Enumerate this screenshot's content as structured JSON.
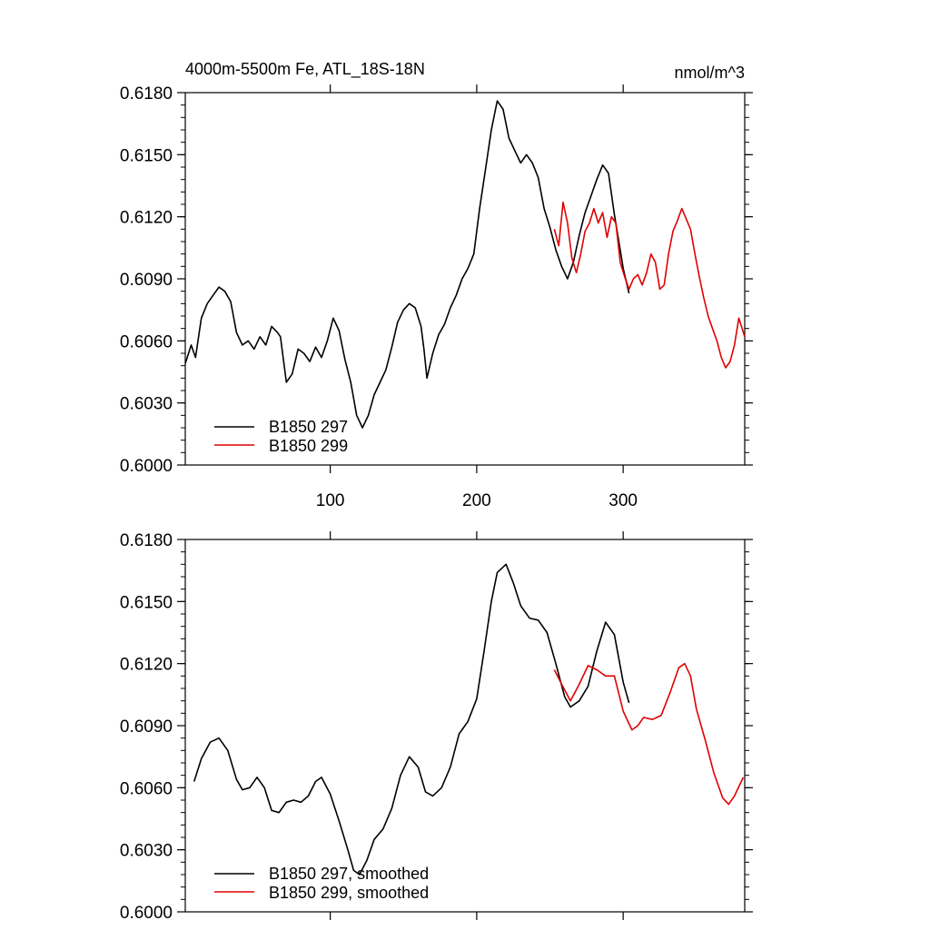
{
  "chart_data": [
    {
      "type": "line",
      "title": "4000m-5500m Fe, ATL_18S-18N",
      "units": "nmol/m^3",
      "xlim": [
        1,
        383
      ],
      "ylim": [
        0.6,
        0.618
      ],
      "xticks": [
        100,
        200,
        300
      ],
      "xtick_labels": [
        "100",
        "200",
        "300"
      ],
      "yticks": [
        0.6,
        0.603,
        0.606,
        0.609,
        0.612,
        0.615,
        0.618
      ],
      "ytick_labels": [
        "0.6000",
        "0.6030",
        "0.6060",
        "0.6090",
        "0.6120",
        "0.6150",
        "0.6180"
      ],
      "legend_position": "bottom-left",
      "series": [
        {
          "name": "B1850 297",
          "color": "#000000",
          "points": [
            [
              1,
              0.6049
            ],
            [
              5,
              0.6058
            ],
            [
              8,
              0.6052
            ],
            [
              12,
              0.6071
            ],
            [
              16,
              0.6078
            ],
            [
              20,
              0.6082
            ],
            [
              24,
              0.6086
            ],
            [
              28,
              0.6084
            ],
            [
              32,
              0.6079
            ],
            [
              36,
              0.6064
            ],
            [
              40,
              0.6058
            ],
            [
              44,
              0.606
            ],
            [
              48,
              0.6056
            ],
            [
              52,
              0.6062
            ],
            [
              56,
              0.6058
            ],
            [
              60,
              0.6067
            ],
            [
              64,
              0.6064
            ],
            [
              66,
              0.6062
            ],
            [
              70,
              0.604
            ],
            [
              74,
              0.6044
            ],
            [
              78,
              0.6056
            ],
            [
              82,
              0.6054
            ],
            [
              86,
              0.605
            ],
            [
              90,
              0.6057
            ],
            [
              94,
              0.6052
            ],
            [
              98,
              0.606
            ],
            [
              102,
              0.6071
            ],
            [
              106,
              0.6065
            ],
            [
              110,
              0.6051
            ],
            [
              114,
              0.604
            ],
            [
              118,
              0.6024
            ],
            [
              122,
              0.6018
            ],
            [
              126,
              0.6024
            ],
            [
              130,
              0.6034
            ],
            [
              134,
              0.604
            ],
            [
              138,
              0.6046
            ],
            [
              142,
              0.6057
            ],
            [
              146,
              0.6069
            ],
            [
              150,
              0.6075
            ],
            [
              154,
              0.6078
            ],
            [
              158,
              0.6076
            ],
            [
              162,
              0.6067
            ],
            [
              164,
              0.6056
            ],
            [
              166,
              0.6042
            ],
            [
              170,
              0.6054
            ],
            [
              174,
              0.6063
            ],
            [
              178,
              0.6068
            ],
            [
              182,
              0.6076
            ],
            [
              186,
              0.6082
            ],
            [
              190,
              0.609
            ],
            [
              194,
              0.6095
            ],
            [
              198,
              0.6102
            ],
            [
              202,
              0.6124
            ],
            [
              206,
              0.6143
            ],
            [
              210,
              0.6162
            ],
            [
              214,
              0.6176
            ],
            [
              218,
              0.6172
            ],
            [
              222,
              0.6158
            ],
            [
              226,
              0.6152
            ],
            [
              230,
              0.6146
            ],
            [
              234,
              0.615
            ],
            [
              238,
              0.6146
            ],
            [
              242,
              0.6139
            ],
            [
              246,
              0.6124
            ],
            [
              250,
              0.6115
            ],
            [
              254,
              0.6104
            ],
            [
              258,
              0.6096
            ],
            [
              262,
              0.609
            ],
            [
              266,
              0.6098
            ],
            [
              270,
              0.6111
            ],
            [
              274,
              0.6122
            ],
            [
              278,
              0.613
            ],
            [
              282,
              0.6138
            ],
            [
              286,
              0.6145
            ],
            [
              290,
              0.6141
            ],
            [
              294,
              0.6121
            ],
            [
              298,
              0.6104
            ],
            [
              300,
              0.6095
            ],
            [
              304,
              0.6083
            ]
          ]
        },
        {
          "name": "B1850 299",
          "color": "#e00000",
          "points": [
            [
              253,
              0.6114
            ],
            [
              256,
              0.6106
            ],
            [
              259,
              0.6127
            ],
            [
              262,
              0.6117
            ],
            [
              265,
              0.61
            ],
            [
              268,
              0.6093
            ],
            [
              271,
              0.6102
            ],
            [
              274,
              0.6113
            ],
            [
              277,
              0.6117
            ],
            [
              280,
              0.6124
            ],
            [
              283,
              0.6117
            ],
            [
              286,
              0.6122
            ],
            [
              289,
              0.611
            ],
            [
              292,
              0.612
            ],
            [
              295,
              0.6117
            ],
            [
              298,
              0.6098
            ],
            [
              301,
              0.6091
            ],
            [
              304,
              0.6085
            ],
            [
              307,
              0.609
            ],
            [
              310,
              0.6092
            ],
            [
              313,
              0.6087
            ],
            [
              316,
              0.6093
            ],
            [
              319,
              0.6102
            ],
            [
              322,
              0.6098
            ],
            [
              325,
              0.6085
            ],
            [
              328,
              0.6087
            ],
            [
              331,
              0.6102
            ],
            [
              334,
              0.6113
            ],
            [
              337,
              0.6118
            ],
            [
              340,
              0.6124
            ],
            [
              343,
              0.6119
            ],
            [
              346,
              0.6114
            ],
            [
              349,
              0.6102
            ],
            [
              352,
              0.6091
            ],
            [
              355,
              0.6081
            ],
            [
              358,
              0.6072
            ],
            [
              361,
              0.6066
            ],
            [
              364,
              0.606
            ],
            [
              367,
              0.6052
            ],
            [
              370,
              0.6047
            ],
            [
              373,
              0.605
            ],
            [
              376,
              0.6058
            ],
            [
              379,
              0.6071
            ],
            [
              383,
              0.6062
            ]
          ]
        }
      ]
    },
    {
      "type": "line",
      "xlim": [
        1,
        383
      ],
      "ylim": [
        0.6,
        0.618
      ],
      "yticks": [
        0.6,
        0.603,
        0.606,
        0.609,
        0.612,
        0.615,
        0.618
      ],
      "ytick_labels": [
        "0.6000",
        "0.6030",
        "0.6060",
        "0.6090",
        "0.6120",
        "0.6150",
        "0.6180"
      ],
      "legend_position": "bottom-left",
      "series": [
        {
          "name": "B1850 297, smoothed",
          "color": "#000000",
          "points": [
            [
              7,
              0.6063
            ],
            [
              12,
              0.6074
            ],
            [
              18,
              0.6082
            ],
            [
              24,
              0.6084
            ],
            [
              30,
              0.6078
            ],
            [
              36,
              0.6064
            ],
            [
              40,
              0.6059
            ],
            [
              45,
              0.606
            ],
            [
              50,
              0.6065
            ],
            [
              55,
              0.606
            ],
            [
              60,
              0.6049
            ],
            [
              65,
              0.6048
            ],
            [
              70,
              0.6053
            ],
            [
              75,
              0.6054
            ],
            [
              80,
              0.6053
            ],
            [
              85,
              0.6056
            ],
            [
              90,
              0.6063
            ],
            [
              94,
              0.6065
            ],
            [
              100,
              0.6057
            ],
            [
              106,
              0.6044
            ],
            [
              112,
              0.603
            ],
            [
              116,
              0.602
            ],
            [
              120,
              0.6018
            ],
            [
              125,
              0.6025
            ],
            [
              130,
              0.6035
            ],
            [
              136,
              0.604
            ],
            [
              142,
              0.605
            ],
            [
              148,
              0.6066
            ],
            [
              154,
              0.6075
            ],
            [
              160,
              0.607
            ],
            [
              165,
              0.6058
            ],
            [
              170,
              0.6056
            ],
            [
              176,
              0.606
            ],
            [
              182,
              0.607
            ],
            [
              188,
              0.6086
            ],
            [
              194,
              0.6092
            ],
            [
              200,
              0.6103
            ],
            [
              205,
              0.6126
            ],
            [
              210,
              0.615
            ],
            [
              214,
              0.6164
            ],
            [
              220,
              0.6168
            ],
            [
              225,
              0.6159
            ],
            [
              230,
              0.6148
            ],
            [
              236,
              0.6142
            ],
            [
              242,
              0.6141
            ],
            [
              248,
              0.6135
            ],
            [
              254,
              0.612
            ],
            [
              260,
              0.6104
            ],
            [
              264,
              0.6099
            ],
            [
              270,
              0.6102
            ],
            [
              276,
              0.6109
            ],
            [
              282,
              0.6126
            ],
            [
              288,
              0.614
            ],
            [
              294,
              0.6134
            ],
            [
              300,
              0.6111
            ],
            [
              304,
              0.6101
            ]
          ]
        },
        {
          "name": "B1850 299, smoothed",
          "color": "#e00000",
          "points": [
            [
              253,
              0.6117
            ],
            [
              258,
              0.611
            ],
            [
              264,
              0.6102
            ],
            [
              270,
              0.611
            ],
            [
              276,
              0.6119
            ],
            [
              282,
              0.6117
            ],
            [
              288,
              0.6114
            ],
            [
              294,
              0.6114
            ],
            [
              300,
              0.6097
            ],
            [
              306,
              0.6088
            ],
            [
              310,
              0.609
            ],
            [
              314,
              0.6094
            ],
            [
              320,
              0.6093
            ],
            [
              326,
              0.6095
            ],
            [
              332,
              0.6106
            ],
            [
              338,
              0.6118
            ],
            [
              342,
              0.612
            ],
            [
              346,
              0.6114
            ],
            [
              350,
              0.6098
            ],
            [
              356,
              0.6083
            ],
            [
              362,
              0.6067
            ],
            [
              368,
              0.6055
            ],
            [
              372,
              0.6052
            ],
            [
              376,
              0.6056
            ],
            [
              382,
              0.6065
            ]
          ]
        }
      ]
    }
  ]
}
